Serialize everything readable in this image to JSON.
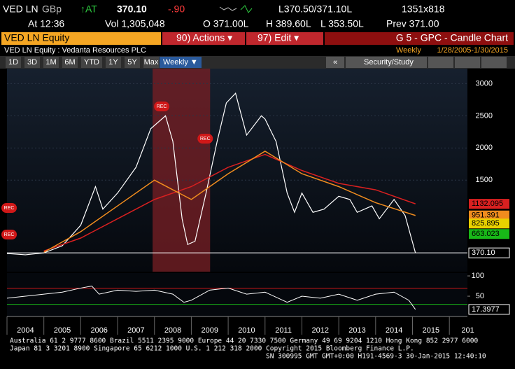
{
  "header": {
    "ticker": "VED LN",
    "currency": "GBp",
    "at_label": "↑AT",
    "last": "370.10",
    "change": "-.90",
    "bid_ask": "L370.50/371.10L",
    "size": "1351x818",
    "time": "At 12:36",
    "volume": "Vol 1,305,048",
    "open": "O 371.00L",
    "high": "H 389.60L",
    "low": "L 353.50L",
    "prev": "Prev 371.00"
  },
  "menu": {
    "security": "VED LN Equity",
    "actions": "90) Actions ▾",
    "edit": "97) Edit ▾",
    "function": "G 5 - GPC - Candle Chart"
  },
  "subheader": {
    "name": "VED LN Equity : Vedanta Resources PLC",
    "frequency": "Weekly",
    "range": "1/28/2005-1/30/2015"
  },
  "toolbar": {
    "periods": [
      "1D",
      "3D",
      "1M",
      "6M",
      "YTD",
      "1Y",
      "5Y",
      "Max"
    ],
    "frequency": "Weekly ▼",
    "collapse": "«",
    "study": "Security/Study"
  },
  "chart_data": {
    "type": "line",
    "xlim": [
      2004.0,
      2016.49
    ],
    "ylim": [
      78,
      3233
    ],
    "yticks": [
      1500,
      2000,
      2500,
      3000
    ],
    "year_labels": [
      "2004",
      "2005",
      "2006",
      "2007",
      "2008",
      "2009",
      "2010",
      "2011",
      "2012",
      "2013",
      "2014",
      "2015",
      "201"
    ],
    "recession": [
      2007.95,
      2009.51
    ],
    "annotations": [
      "REC",
      "REC",
      "REC",
      "REC"
    ],
    "series": [
      {
        "color": "#ffffff",
        "x": [
          2004.0,
          2004.5,
          2005.0,
          2005.5,
          2006.0,
          2006.4,
          2006.6,
          2007.0,
          2007.5,
          2007.9,
          2008.3,
          2008.5,
          2008.75,
          2008.9,
          2009.1,
          2009.4,
          2009.7,
          2009.95,
          2010.2,
          2010.5,
          2010.9,
          2011.0,
          2011.3,
          2011.6,
          2011.8,
          2012.0,
          2012.3,
          2012.6,
          2013.0,
          2013.3,
          2013.5,
          2013.9,
          2014.1,
          2014.5,
          2014.8,
          2015.08
        ],
        "values": [
          360,
          340,
          370,
          480,
          800,
          1400,
          1050,
          1300,
          1700,
          2300,
          2500,
          2100,
          900,
          500,
          550,
          1300,
          2100,
          2700,
          2850,
          2200,
          2500,
          2450,
          2100,
          1300,
          1000,
          1300,
          1000,
          1050,
          1250,
          1200,
          1000,
          1100,
          900,
          1200,
          950,
          370
        ]
      },
      {
        "color": "#d92020",
        "x": [
          2005.0,
          2006.0,
          2007.0,
          2008.0,
          2009.0,
          2010.0,
          2011.0,
          2012.0,
          2013.0,
          2014.0,
          2015.08
        ],
        "values": [
          400,
          600,
          900,
          1200,
          1400,
          1700,
          1900,
          1650,
          1450,
          1350,
          1132
        ]
      },
      {
        "color": "#f08c1e",
        "x": [
          2005.0,
          2006.0,
          2007.0,
          2008.0,
          2009.0,
          2010.0,
          2011.0,
          2012.0,
          2013.0,
          2014.0,
          2015.08
        ],
        "values": [
          380,
          700,
          1100,
          1500,
          1200,
          1600,
          1950,
          1600,
          1400,
          1150,
          951
        ]
      }
    ],
    "right_labels": [
      {
        "value": 1132.095,
        "label": "1132.095",
        "color": "#d92020"
      },
      {
        "value": 951.391,
        "label": "951.391",
        "color": "#f08c1e"
      },
      {
        "value": 825.895,
        "label": "825.895",
        "color": "#e8d000"
      },
      {
        "value": 663.023,
        "label": "663.023",
        "color": "#18b818"
      },
      {
        "value": 370.1,
        "label": "370.10",
        "color": "#000000"
      }
    ],
    "lower": {
      "ylim": [
        0,
        107
      ],
      "yticks": [
        50,
        100
      ],
      "upper_band": 70,
      "lower_band": 30,
      "color": "#ffffff",
      "x": [
        2004.0,
        2004.5,
        2005.0,
        2005.5,
        2006.0,
        2006.3,
        2006.5,
        2007.0,
        2007.5,
        2008.0,
        2008.5,
        2008.8,
        2009.0,
        2009.5,
        2010.0,
        2010.5,
        2011.0,
        2011.6,
        2012.0,
        2012.5,
        2013.0,
        2013.5,
        2014.0,
        2014.5,
        2014.9,
        2015.08
      ],
      "values": [
        45,
        50,
        55,
        60,
        70,
        75,
        55,
        65,
        62,
        65,
        55,
        35,
        40,
        65,
        70,
        55,
        60,
        35,
        50,
        45,
        55,
        40,
        55,
        60,
        40,
        17.3977
      ],
      "last_label": "17.3977"
    }
  },
  "footer": [
    "Australia 61 2 9777 8600 Brazil 5511 2395 9000 Europe 44 20 7330 7500 Germany 49 69 9204 1210 Hong Kong 852 2977 6000",
    "Japan 81 3 3201 8900          Singapore 65 6212 1000          U.S. 1 212 318 2000          Copyright 2015 Bloomberg Finance L.P.",
    "SN 300995 GMT  GMT+0:00 H191-4569-3 30-Jan-2015 12:40:10"
  ]
}
